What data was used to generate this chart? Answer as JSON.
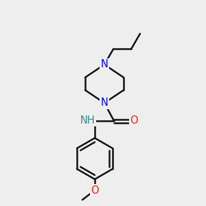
{
  "background_color": "#eeeeee",
  "bond_color": "#111111",
  "N_color": "#0000ee",
  "O_color": "#ee2200",
  "NH_color": "#3a8888",
  "line_width": 1.8,
  "font_size": 10.5,
  "fig_w": 3.0,
  "fig_h": 3.0,
  "dpi": 100,
  "xlim": [
    0,
    300
  ],
  "ylim": [
    0,
    300
  ]
}
